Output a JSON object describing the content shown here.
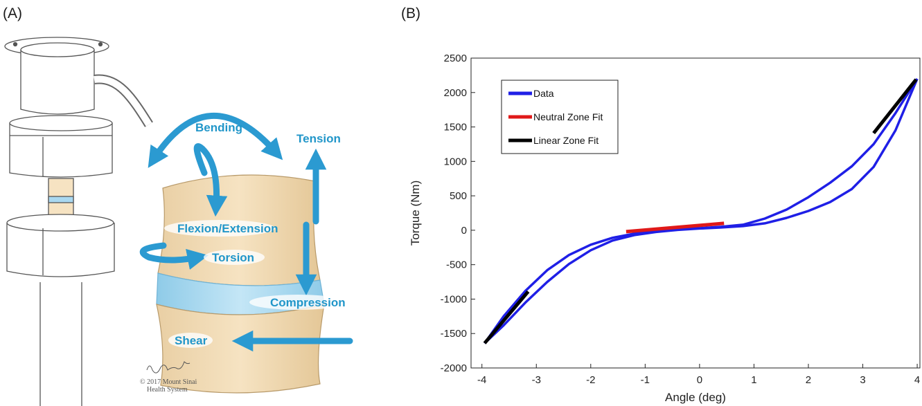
{
  "panels": {
    "a_label": "(A)",
    "b_label": "(B)"
  },
  "illustration": {
    "labels": {
      "bending": "Bending",
      "tension": "Tension",
      "flexion": "Flexion/Extension",
      "torsion": "Torsion",
      "compression": "Compression",
      "shear": "Shear"
    },
    "signature": "Christopher M. Smith",
    "copyright_line1": "© 2017 Mount Sinai",
    "copyright_line2": "Health System",
    "colors": {
      "arrow": "#2b9ad1",
      "bone": "#f3dcb4",
      "disc": "#a9d8f0"
    }
  },
  "chart_data": {
    "type": "line",
    "xlabel": "Angle (deg)",
    "ylabel": "Torque (Nm)",
    "xlim": [
      -4.2,
      4.05
    ],
    "ylim": [
      -2000,
      2500
    ],
    "xticks": [
      -4,
      -3,
      -2,
      -1,
      0,
      1,
      2,
      3,
      4
    ],
    "yticks": [
      -2000,
      -1500,
      -1000,
      -500,
      0,
      500,
      1000,
      1500,
      2000,
      2500
    ],
    "legend_position": "top-left",
    "series": [
      {
        "name": "Data",
        "color": "#1f1fe6",
        "loading_x": [
          -3.95,
          -3.6,
          -3.2,
          -2.8,
          -2.4,
          -2.0,
          -1.6,
          -1.2,
          -0.8,
          -0.4,
          0.0,
          0.4,
          0.8,
          1.2,
          1.6,
          2.0,
          2.4,
          2.8,
          3.2,
          3.6,
          4.0
        ],
        "loading_y": [
          -1640,
          -1250,
          -880,
          -580,
          -360,
          -210,
          -110,
          -50,
          -10,
          15,
          30,
          50,
          80,
          170,
          300,
          480,
          690,
          930,
          1250,
          1700,
          2200
        ],
        "unloading_x": [
          4.0,
          3.6,
          3.2,
          2.8,
          2.4,
          2.0,
          1.6,
          1.2,
          0.8,
          0.4,
          0.0,
          -0.4,
          -0.8,
          -1.2,
          -1.6,
          -2.0,
          -2.4,
          -2.8,
          -3.2,
          -3.6,
          -3.95
        ],
        "unloading_y": [
          2200,
          1450,
          920,
          600,
          410,
          280,
          180,
          100,
          60,
          40,
          25,
          5,
          -25,
          -70,
          -150,
          -290,
          -490,
          -750,
          -1050,
          -1380,
          -1640
        ]
      },
      {
        "name": "Neutral Zone Fit",
        "color": "#e01919",
        "x": [
          -1.35,
          0.45
        ],
        "y": [
          -20,
          100
        ]
      },
      {
        "name": "Linear Zone Fit",
        "color": "#000000",
        "segments": [
          {
            "x": [
              -3.95,
              -3.15
            ],
            "y": [
              -1640,
              -890
            ]
          },
          {
            "x": [
              3.2,
              3.98
            ],
            "y": [
              1410,
              2190
            ]
          }
        ]
      }
    ]
  }
}
